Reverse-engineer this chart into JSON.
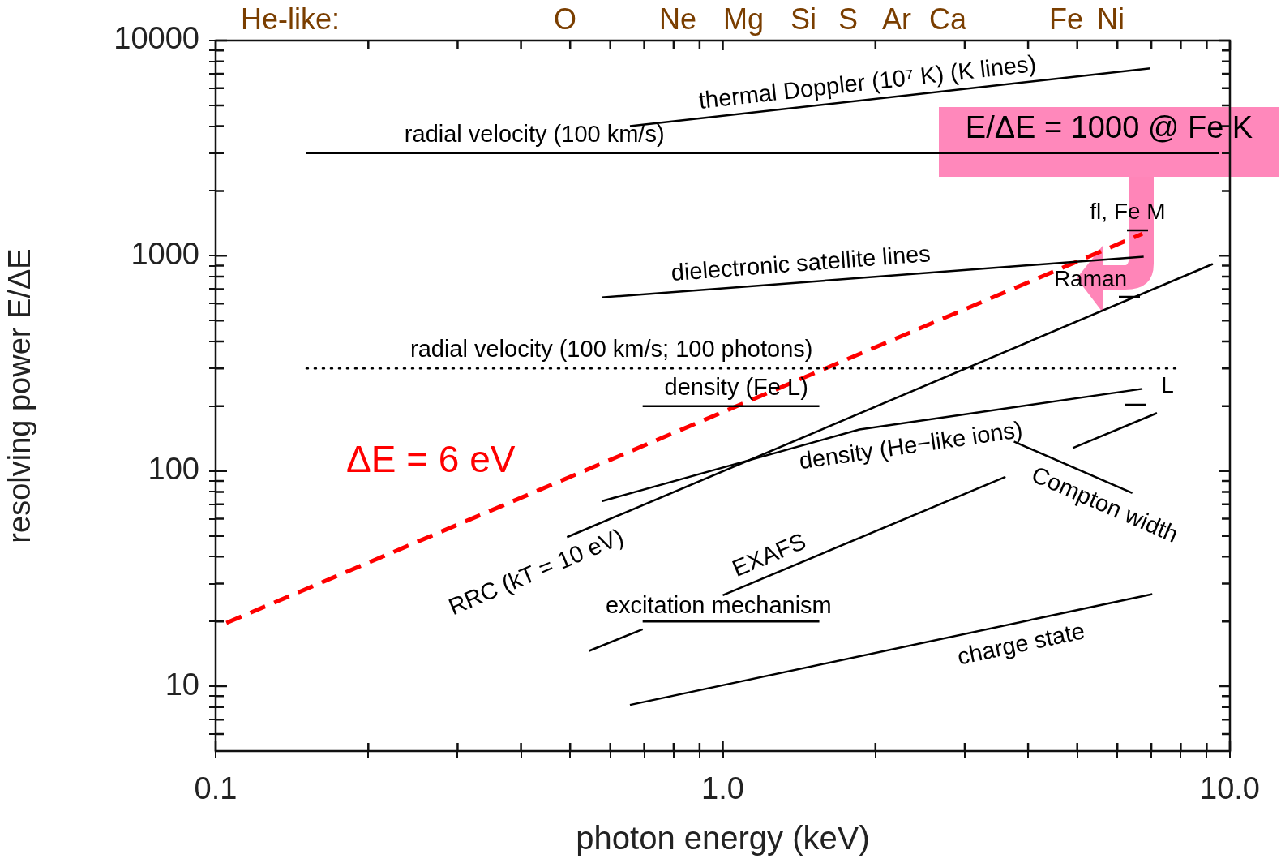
{
  "chart_data": {
    "type": "line",
    "xlabel": "photon energy (keV)",
    "ylabel": "resolving power E/ΔE",
    "log": "xy",
    "grid": false,
    "legend": false,
    "marker": "none",
    "xlim": [
      0.1,
      10
    ],
    "ylim": [
      5,
      10000
    ],
    "xticks": [
      0.1,
      {
        "value": 0.2,
        "label": null
      },
      {
        "value": 0.3,
        "label": null
      },
      {
        "value": 0.4,
        "label": null
      },
      {
        "value": 0.5,
        "label": null
      },
      {
        "value": 0.6,
        "label": null
      },
      {
        "value": 0.7,
        "label": null
      },
      {
        "value": 0.8,
        "label": null
      },
      {
        "value": 0.9,
        "label": null
      },
      {
        "value": 1,
        "label": "1.0"
      },
      {
        "value": 2,
        "label": null
      },
      {
        "value": 3,
        "label": null
      },
      {
        "value": 4,
        "label": null
      },
      {
        "value": 5,
        "label": null
      },
      {
        "value": 6,
        "label": null
      },
      {
        "value": 7,
        "label": null
      },
      {
        "value": 8,
        "label": null
      },
      {
        "value": 9,
        "label": null
      },
      {
        "value": 10,
        "label": "10.0"
      }
    ],
    "yticks": [
      {
        "value": 6,
        "label": null
      },
      {
        "value": 7,
        "label": null
      },
      {
        "value": 8,
        "label": null
      },
      {
        "value": 9,
        "label": null
      },
      10,
      {
        "value": 20,
        "label": null
      },
      {
        "value": 30,
        "label": null
      },
      {
        "value": 40,
        "label": null
      },
      {
        "value": 50,
        "label": null
      },
      {
        "value": 60,
        "label": null
      },
      {
        "value": 70,
        "label": null
      },
      {
        "value": 80,
        "label": null
      },
      {
        "value": 90,
        "label": null
      },
      100,
      {
        "value": 200,
        "label": null
      },
      {
        "value": 300,
        "label": null
      },
      {
        "value": 400,
        "label": null
      },
      {
        "value": 500,
        "label": null
      },
      {
        "value": 600,
        "label": null
      },
      {
        "value": 700,
        "label": null
      },
      {
        "value": 800,
        "label": null
      },
      {
        "value": 900,
        "label": null
      },
      1000,
      {
        "value": 2000,
        "label": null
      },
      {
        "value": 3000,
        "label": null
      },
      {
        "value": 4000,
        "label": null
      },
      {
        "value": 5000,
        "label": null
      },
      {
        "value": 6000,
        "label": null
      },
      {
        "value": 7000,
        "label": null
      },
      {
        "value": 8000,
        "label": null
      },
      {
        "value": 9000,
        "label": null
      },
      10000
    ],
    "series": [
      {
        "name": "thermal Doppler (10⁷ K) (K lines)",
        "color": "#000000",
        "x": [
          0.656,
          6.97
        ],
        "values": [
          4000,
          7430
        ]
      },
      {
        "name": "radial velocity (100 km/s)",
        "color": "#000000",
        "x": [
          0.151,
          9.5
        ],
        "values": [
          3000,
          3000
        ]
      },
      {
        "name": "dielectronic satellite lines",
        "color": "#000000",
        "x": [
          0.577,
          6.76
        ],
        "values": [
          641,
          991
        ]
      },
      {
        "name": "radial velocity (100 km/s; 100 photons)",
        "color": "#000000",
        "line_style": "dotted",
        "x": [
          0.151,
          7.9
        ],
        "values": [
          300,
          300
        ]
      },
      {
        "name": "density (Fe L)",
        "color": "#000000",
        "x": [
          0.695,
          1.55
        ],
        "values": [
          200,
          200
        ]
      },
      {
        "name": "RRC (kT = 10 eV)",
        "color": "#000000",
        "x": [
          0.493,
          9.25
        ],
        "values": [
          49.3,
          916
        ]
      },
      {
        "name": "density (He−like ions)",
        "color": "#000000",
        "x": [
          0.577,
          1.86,
          6.72
        ],
        "values": [
          72.4,
          156,
          241
        ]
      },
      {
        "name": "Compton width",
        "color": "#000000",
        "x": [
          3.75,
          6.42
        ],
        "values": [
          137,
          79
        ]
      },
      {
        "color": "#000000",
        "x": [
          4.9,
          7.18
        ],
        "values": [
          128,
          186
        ]
      },
      {
        "name": "EXAFS",
        "color": "#000000",
        "x": [
          1.0,
          3.61
        ],
        "values": [
          26.5,
          94
        ]
      },
      {
        "name": "excitation mechanism",
        "color": "#000000",
        "x": [
          0.695,
          1.55
        ],
        "values": [
          20,
          20
        ]
      },
      {
        "name": "charge state",
        "color": "#000000",
        "x": [
          0.656,
          7.03
        ],
        "values": [
          8.19,
          26.8
        ]
      },
      {
        "name": "ΔE = 6 eV",
        "color": "#ff0000",
        "line_style": "dashed",
        "x": [
          0.105,
          6.72
        ],
        "values": [
          19.7,
          1265
        ]
      },
      {
        "color": "#000000",
        "x": [
          0.545,
          0.695
        ],
        "values": [
          14.6,
          18.4
        ]
      }
    ],
    "annotations": [
      "He-like:",
      "O",
      "Ne",
      "Mg",
      "Si",
      "S",
      "Ar",
      "Ca",
      "Fe",
      "Ni",
      "E/ΔE = 1000 @ Fe K",
      "fl, Fe M",
      "Raman",
      "L"
    ]
  }
}
